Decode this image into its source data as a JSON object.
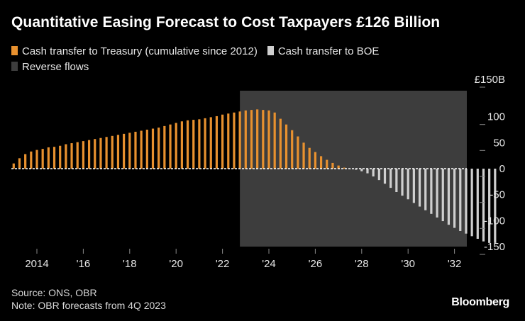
{
  "title": "Quantitative Easing Forecast to Cost Taxpayers £126 Billion",
  "legend": {
    "treasury": "Cash transfer to Treasury (cumulative since 2012)",
    "boe": "Cash transfer to BOE",
    "reverse": "Reverse flows"
  },
  "colors": {
    "treasury": "#e8912f",
    "boe": "#cfcfcf",
    "reverse": "#3d3d3d",
    "zero_line": "#ffffff"
  },
  "footer": {
    "source": "Source: ONS, OBR",
    "note": "Note: OBR forecasts from 4Q 2023"
  },
  "brand": "Bloomberg",
  "chart_data": {
    "type": "bar",
    "unit_label": "£150B",
    "ylim": [
      -150,
      150
    ],
    "y_ticks": [
      {
        "value": 150,
        "label": "£150B"
      },
      {
        "value": 100,
        "label": "100"
      },
      {
        "value": 50,
        "label": "50"
      },
      {
        "value": 0,
        "label": "0"
      },
      {
        "value": -50,
        "label": "-50"
      },
      {
        "value": -100,
        "label": "-100"
      },
      {
        "value": -150,
        "label": "-150"
      }
    ],
    "x_ticks": [
      {
        "year": 2014,
        "label": "2014"
      },
      {
        "year": 2016,
        "label": "'16"
      },
      {
        "year": 2018,
        "label": "'18"
      },
      {
        "year": 2020,
        "label": "'20"
      },
      {
        "year": 2022,
        "label": "'22"
      },
      {
        "year": 2024,
        "label": "'24"
      },
      {
        "year": 2026,
        "label": "'26"
      },
      {
        "year": 2028,
        "label": "'28"
      },
      {
        "year": 2030,
        "label": "'30"
      },
      {
        "year": 2032,
        "label": "'32"
      }
    ],
    "x_start_year": 2013.0,
    "period_step_years": 0.25,
    "reverse_flows_start_year": 2022.75,
    "reverse_flows_end_year": 2033.25,
    "series": [
      {
        "name": "Cash transfer to Treasury (cumulative since 2012)",
        "values": [
          10,
          20,
          28,
          33,
          36,
          38,
          41,
          42,
          44,
          47,
          49,
          51,
          53,
          55,
          57,
          59,
          61,
          63,
          65,
          67,
          69,
          71,
          73,
          75,
          77,
          79,
          82,
          85,
          88,
          91,
          93,
          94,
          95,
          97,
          99,
          101,
          104,
          106,
          108,
          110,
          112,
          113,
          114,
          113,
          112,
          108,
          96,
          85,
          74,
          62,
          50,
          40,
          32,
          24,
          17,
          11,
          6,
          2
        ]
      },
      {
        "name": "Cash transfer to BOE",
        "values": [
          0,
          -2,
          -5,
          -9,
          -15,
          -22,
          -29,
          -37,
          -45,
          -52,
          -59,
          -66,
          -73,
          -80,
          -87,
          -94,
          -101,
          -108,
          -114,
          -120,
          -125,
          -130,
          -135,
          -140,
          -143,
          -143
        ]
      }
    ]
  }
}
